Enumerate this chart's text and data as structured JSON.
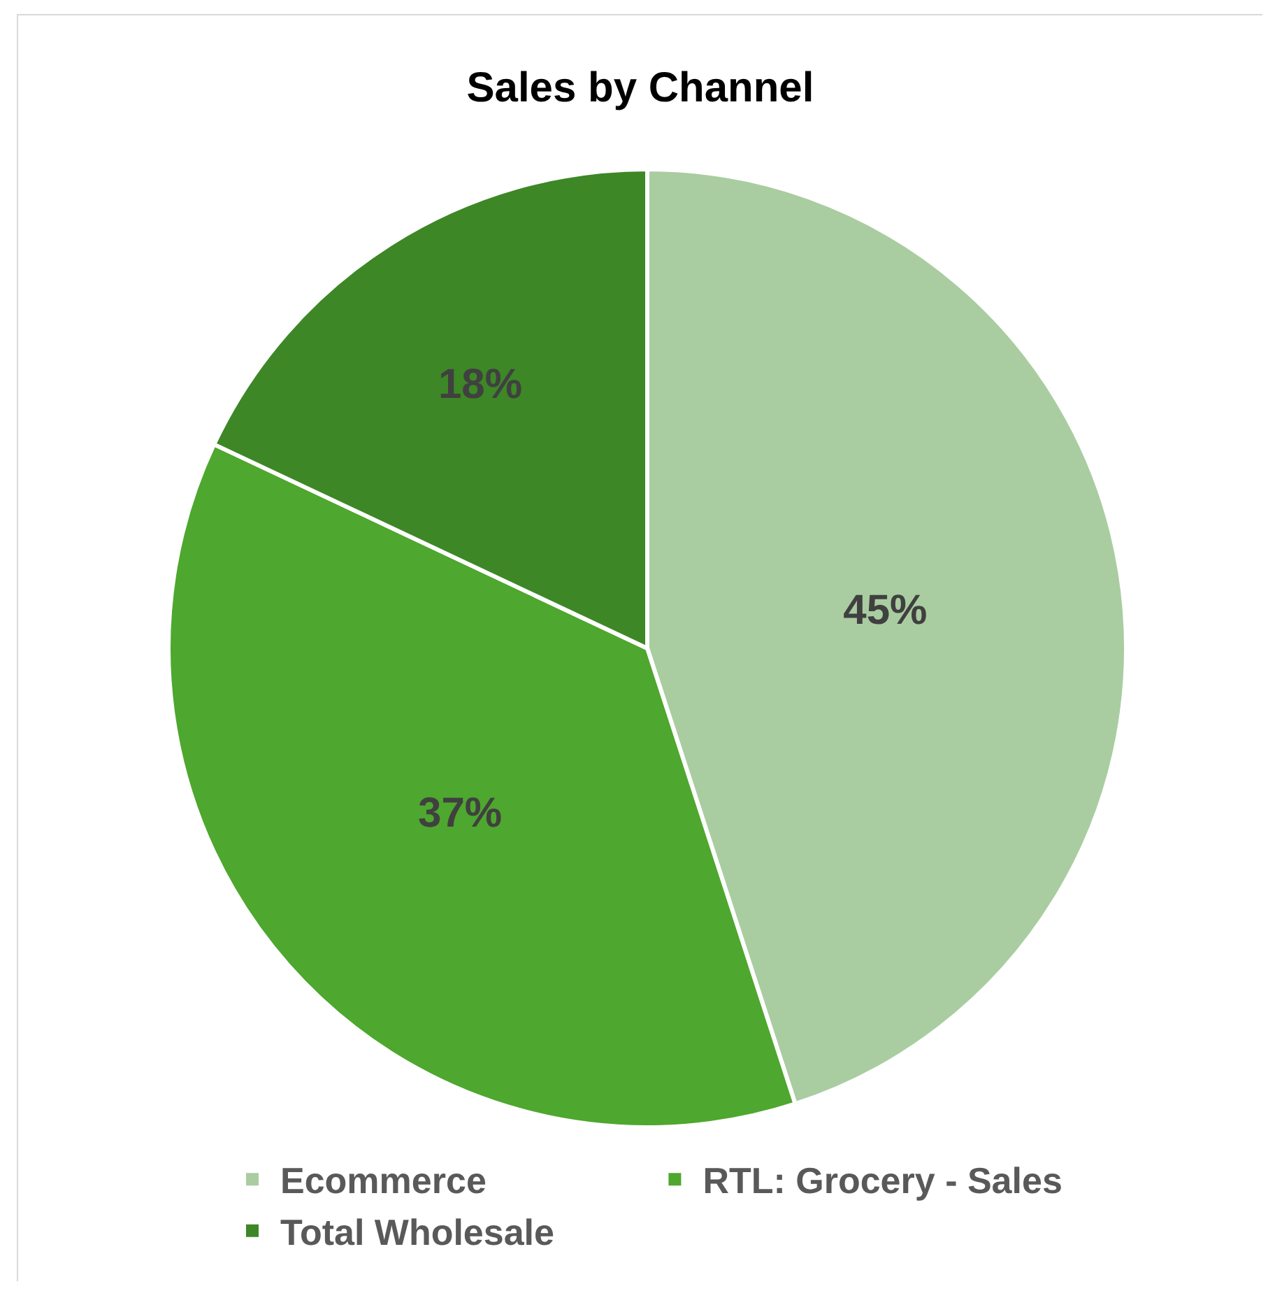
{
  "chart_data": {
    "type": "pie",
    "title": "Sales by Channel",
    "categories": [
      "Ecommerce",
      "RTL: Grocery - Sales",
      "Total Wholesale"
    ],
    "values": [
      45,
      37,
      18
    ],
    "value_labels": [
      "45%",
      "37%",
      "18%"
    ],
    "colors": [
      "#a9cda0",
      "#4ea72e",
      "#3d8726"
    ],
    "legend": "bottom"
  }
}
